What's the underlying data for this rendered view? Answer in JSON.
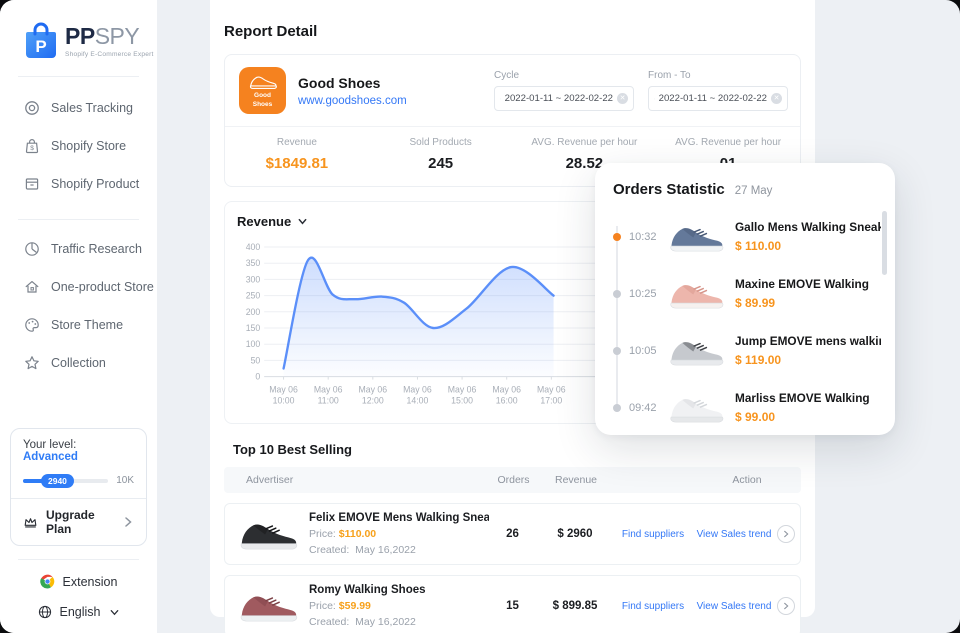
{
  "brand": {
    "name_bold": "PP",
    "name_light": "SPY",
    "tagline": "Shopify E-Commerce Expert",
    "logo_letter": "P"
  },
  "sidebar": {
    "nav": [
      {
        "label": "Sales Tracking"
      },
      {
        "label": "Shopify Store"
      },
      {
        "label": "Shopify Product"
      },
      {
        "label": "Traffic Research"
      },
      {
        "label": "One-product Store"
      },
      {
        "label": "Store Theme"
      },
      {
        "label": "Collection"
      }
    ],
    "level": {
      "label": "Your level:",
      "value": "Advanced",
      "badge": "2940",
      "max": "10K",
      "upgrade": "Upgrade Plan"
    },
    "extension": "Extension",
    "language": "English"
  },
  "header": {
    "title": "Report Detail"
  },
  "store": {
    "name": "Good Shoes",
    "url": "www.goodshoes.com",
    "badge_line1": "Good",
    "badge_line2": "Shoes"
  },
  "filters": [
    {
      "label": "Cycle",
      "value": "2022-01-11  ~  2022-02-22"
    },
    {
      "label": "From - To",
      "value": "2022-01-11  ~  2022-02-22"
    }
  ],
  "stats": [
    {
      "label": "Revenue",
      "value": "$1849.81"
    },
    {
      "label": "Sold Products",
      "value": "245"
    },
    {
      "label": "AVG. Revenue per hour",
      "value": "28.52"
    },
    {
      "label": "AVG. Revenue per hour",
      "value": "01"
    }
  ],
  "chart_section": {
    "title": "Revenue"
  },
  "chart_data": {
    "type": "area",
    "title": "Revenue",
    "x_labels": [
      [
        "May 06",
        "10:00"
      ],
      [
        "May 06",
        "11:00"
      ],
      [
        "May 06",
        "12:00"
      ],
      [
        "May 06",
        "14:00"
      ],
      [
        "May 06",
        "15:00"
      ],
      [
        "May 06",
        "16:00"
      ],
      [
        "May 06",
        "17:00"
      ]
    ],
    "y_ticks": [
      0,
      50,
      100,
      150,
      200,
      250,
      300,
      350,
      400
    ],
    "ylim": [
      0,
      400
    ],
    "grid": true,
    "legend": false,
    "line_color": "#5B8FF9",
    "series": [
      {
        "name": "Revenue",
        "points": [
          [
            0,
            25
          ],
          [
            0.55,
            360
          ],
          [
            1.1,
            253
          ],
          [
            1.6,
            239
          ],
          [
            2.2,
            247
          ],
          [
            2.7,
            228
          ],
          [
            3.35,
            150
          ],
          [
            4.1,
            210
          ],
          [
            5.1,
            338
          ],
          [
            6.05,
            250
          ]
        ]
      }
    ]
  },
  "orders": {
    "title": "Orders Statistic",
    "date": "27 May",
    "items": [
      {
        "time": "10:32",
        "name": "Gallo Mens Walking Sneakers...",
        "price": "$ 110.00",
        "shoe": {
          "body": "#64799a",
          "accent": "#47587500",
          "accent2": "#475875",
          "sole": "#f2f4f6"
        }
      },
      {
        "time": "10:25",
        "name": "Maxine EMOVE Walking",
        "price": "$ 89.99",
        "shoe": {
          "body": "#edb6ac",
          "accent2": "#d6958a",
          "sole": "#f6f1ef"
        }
      },
      {
        "time": "10:05",
        "name": "Jump EMOVE mens walking s...",
        "price": "$ 119.00",
        "shoe": {
          "body": "#c6c9ce",
          "accent2": "#3f4247",
          "sole": "#e8eaed"
        }
      },
      {
        "time": "09:42",
        "name": "Marliss EMOVE Walking",
        "price": "$ 99.00",
        "shoe": {
          "body": "#f0f1f3",
          "accent2": "#d4d7db",
          "sole": "#e6e8ea"
        }
      }
    ]
  },
  "table": {
    "title": "Top 10 Best Selling",
    "columns": [
      "Advertiser",
      "Orders",
      "Revenue",
      "Action"
    ],
    "rows": [
      {
        "name": "Felix EMOVE Mens Walking Sneakers",
        "price_label": "Price:",
        "price": "$110.00",
        "created_label": "Created:",
        "created": "May 16,2022",
        "orders": "26",
        "revenue": "$ 2960",
        "find": "Find suppliers",
        "view": "View Sales trend",
        "shoe": {
          "body": "#2c2e31",
          "accent2": "#141517",
          "sole": "#e9eaec"
        }
      },
      {
        "name": "Romy Walking Shoes",
        "price_label": "Price:",
        "price": "$59.99",
        "created_label": "Created:",
        "created": "May 16,2022",
        "orders": "15",
        "revenue": "$ 899.85",
        "find": "Find suppliers",
        "view": "View Sales trend",
        "shoe": {
          "body": "#a05a5f",
          "accent2": "#7c4146",
          "sole": "#edf0f2"
        }
      }
    ]
  },
  "colors": {
    "accent_orange": "#F7941E",
    "store_badge_orange": "#F5821F",
    "link_blue": "#3478F6",
    "chart_line": "#5B8FF9",
    "bg": "#EDF0F4",
    "text_dark": "#1B1D21",
    "text_gray": "#9AA1AB"
  }
}
